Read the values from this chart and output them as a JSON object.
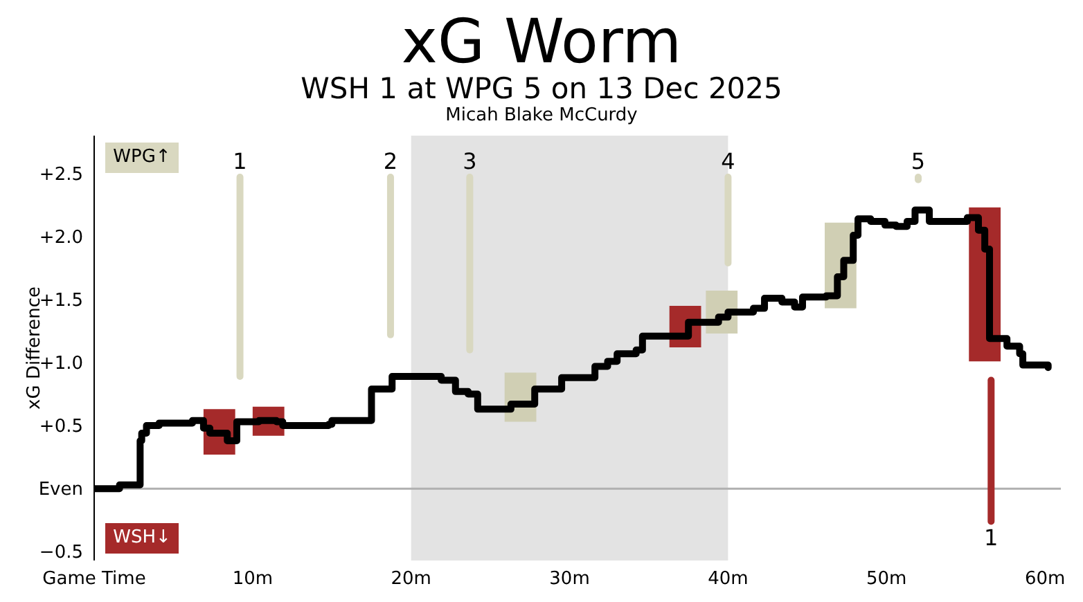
{
  "chart_data": {
    "type": "step",
    "title": "xG Worm",
    "subtitle": "WSH 1 at WPG 5 on 13 Dec 2025",
    "ylabel": "xG Difference",
    "annotations": [
      "Micah Blake McCurdy",
      {
        "text": "1",
        "x": 9.2,
        "y": 2.47
      },
      {
        "text": "2",
        "x": 18.7,
        "y": 2.47
      },
      {
        "text": "3",
        "x": 23.7,
        "y": 2.47
      },
      {
        "text": "4",
        "x": 40.0,
        "y": 2.47
      },
      {
        "text": "5",
        "x": 52.0,
        "y": 2.47
      },
      {
        "text": "1",
        "x": 56.6,
        "y": -0.26
      }
    ],
    "xlim": [
      0,
      61
    ],
    "xticks": [
      {
        "value": 0,
        "label": "Game Time"
      },
      {
        "value": 10,
        "label": "10m"
      },
      {
        "value": 20,
        "label": "20m"
      },
      {
        "value": 30,
        "label": "30m"
      },
      {
        "value": 40,
        "label": "40m"
      },
      {
        "value": 50,
        "label": "50m"
      },
      {
        "value": 60,
        "label": "60m"
      }
    ],
    "ylim": [
      -0.57,
      2.8
    ],
    "yticks": [
      {
        "value": -0.5,
        "label": "−0.5"
      },
      {
        "value": 0,
        "label": "Even"
      },
      {
        "value": 0.5,
        "label": "+0.5"
      },
      {
        "value": 1,
        "label": "+1.0"
      },
      {
        "value": 1.5,
        "label": "+1.5"
      },
      {
        "value": 2,
        "label": "+2.0"
      },
      {
        "value": 2.5,
        "label": "+2.5"
      }
    ],
    "legend": "left",
    "bands": [
      {
        "axis": "x",
        "from": 20,
        "to": 40,
        "color": "#e3e3e3"
      }
    ],
    "ref_lines": [
      {
        "axis": "y",
        "value": 0,
        "color": "#b0b0b0"
      }
    ],
    "series": [
      {
        "type": "bar",
        "color": "#d0cfb4",
        "x": [
          26.9,
          39.6,
          47.1
        ],
        "base": [
          0.53,
          1.23,
          1.43
        ],
        "values": [
          0.39,
          0.34,
          0.68
        ]
      },
      {
        "type": "bar",
        "color": "#a52a2a",
        "x": [
          7.9,
          11.0,
          37.3,
          56.2
        ],
        "base": [
          0.27,
          0.42,
          1.12,
          1.01
        ],
        "values": [
          0.36,
          0.23,
          0.33,
          1.22
        ]
      },
      {
        "type": "bar",
        "name": "WPG↑",
        "color": "#d9d8c0",
        "x": [
          9.2,
          18.7,
          23.7,
          40.0,
          52.0
        ],
        "base": [
          0.89,
          1.22,
          1.1,
          1.79,
          2.45
        ],
        "values": [
          1.58,
          1.25,
          1.37,
          0.68,
          0.02
        ]
      },
      {
        "type": "bar",
        "name": "WSH↓",
        "color": "#a52a2a",
        "x": [
          56.6
        ],
        "base": [
          0.86
        ],
        "values": [
          -1.12
        ]
      },
      {
        "color": "#000000",
        "x": [
          0,
          1.6,
          2.9,
          3.0,
          3.3,
          4.1,
          6.2,
          6.9,
          7.3,
          8.4,
          8.8,
          9.0,
          10.4,
          11.5,
          11.9,
          14.8,
          15.0,
          17.5,
          18.5,
          18.8,
          21.5,
          21.9,
          22.8,
          23.6,
          24.2,
          26.3,
          27.6,
          27.8,
          29.3,
          29.5,
          30.9,
          31.6,
          32.4,
          33.0,
          34.2,
          34.6,
          37.1,
          37.5,
          39.4,
          40.0,
          41.6,
          42.3,
          43.4,
          44.2,
          44.7,
          46.2,
          46.9,
          47.3,
          47.9,
          48.2,
          49.0,
          49.9,
          50.6,
          51.3,
          51.8,
          52.5,
          52.7,
          54.3,
          55.1,
          55.8,
          56.2,
          56.5,
          57.6,
          58.4,
          58.6,
          60.2
        ],
        "values": [
          0,
          0.03,
          0.38,
          0.44,
          0.5,
          0.52,
          0.54,
          0.48,
          0.44,
          0.38,
          0.38,
          0.53,
          0.54,
          0.53,
          0.5,
          0.51,
          0.54,
          0.79,
          0.79,
          0.89,
          0.89,
          0.86,
          0.77,
          0.75,
          0.63,
          0.67,
          0.67,
          0.79,
          0.79,
          0.88,
          0.88,
          0.97,
          1.01,
          1.07,
          1.1,
          1.21,
          1.21,
          1.32,
          1.36,
          1.4,
          1.43,
          1.51,
          1.48,
          1.44,
          1.52,
          1.53,
          1.68,
          1.81,
          2.01,
          2.14,
          2.12,
          2.09,
          2.08,
          2.12,
          2.21,
          2.21,
          2.12,
          2.12,
          2.15,
          2.05,
          1.9,
          1.19,
          1.13,
          1.07,
          0.98,
          0.96
        ]
      }
    ]
  }
}
